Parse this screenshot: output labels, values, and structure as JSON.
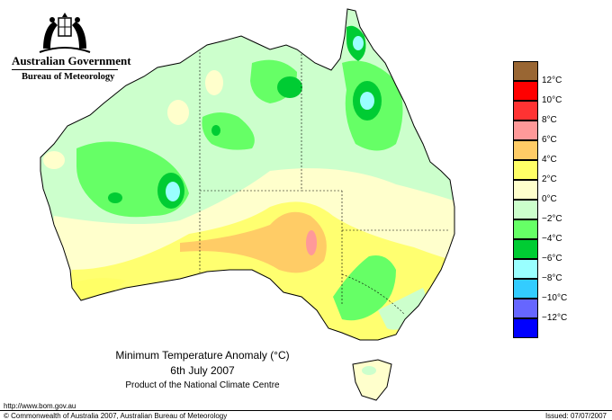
{
  "header": {
    "government": "Australian Government",
    "agency": "Bureau of Meteorology"
  },
  "map": {
    "title": "Minimum Temperature Anomaly (°C)",
    "date": "6th July 2007",
    "credit": "Product of the National Climate Centre"
  },
  "legend": {
    "items": [
      {
        "label": "12°C",
        "color": "#ff0000"
      },
      {
        "label": "10°C",
        "color": "#ff3333"
      },
      {
        "label": "8°C",
        "color": "#ff9999"
      },
      {
        "label": "6°C",
        "color": "#ffcc66"
      },
      {
        "label": "4°C",
        "color": "#ffff66"
      },
      {
        "label": "2°C",
        "color": "#ffffcc"
      },
      {
        "label": "0°C",
        "color": "#ccffcc"
      },
      {
        "label": "−2°C",
        "color": "#66ff66"
      },
      {
        "label": "−4°C",
        "color": "#00cc33"
      },
      {
        "label": "−6°C",
        "color": "#99ffff"
      },
      {
        "label": "−8°C",
        "color": "#33ccff"
      },
      {
        "label": "−10°C",
        "color": "#6666ff"
      },
      {
        "label": "−12°C",
        "color": "#0000ff"
      }
    ],
    "top_color": "#996633",
    "bottom_color": "#0000ff"
  },
  "footer": {
    "url": "http://www.bom.gov.au",
    "copyright": "© Commonwealth of Australia 2007, Australian Bureau of Meteorology",
    "issued": "Issued: 07/07/2007"
  }
}
